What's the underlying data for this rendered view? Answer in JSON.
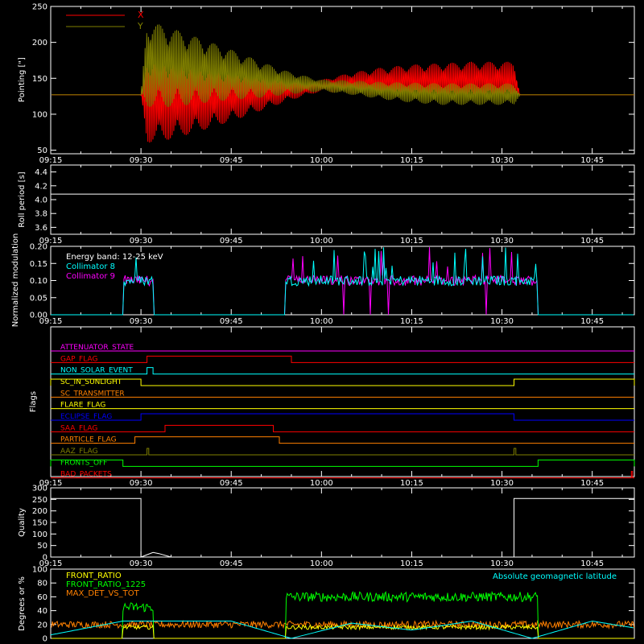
{
  "chart_data": [
    {
      "type": "line",
      "id": "pointing",
      "ylabel": "Pointing [\"]",
      "ylim": [
        45,
        250
      ],
      "yticks": [
        50,
        100,
        150,
        200,
        250
      ],
      "legend": [
        "X",
        "Y"
      ],
      "legend_position": "top-left",
      "colors": {
        "X": "#ff0000",
        "Y": "#808000"
      },
      "series": [
        {
          "name": "X",
          "x": [
            "09:15",
            "09:30",
            "09:31",
            "09:35",
            "09:40",
            "09:45",
            "09:50",
            "09:55",
            "10:00",
            "10:05",
            "10:10",
            "10:15",
            "10:20",
            "10:25",
            "10:30",
            "10:32",
            "10:33",
            "10:40",
            "10:50"
          ],
          "center": [
            127,
            127,
            120,
            120,
            122,
            125,
            130,
            135,
            140,
            143,
            145,
            147,
            147,
            148,
            148,
            148,
            127,
            127,
            127
          ],
          "amplitude": [
            0,
            0,
            60,
            55,
            45,
            35,
            25,
            15,
            8,
            15,
            20,
            22,
            24,
            25,
            25,
            25,
            0,
            0,
            0
          ]
        },
        {
          "name": "Y",
          "x": [
            "09:15",
            "09:30",
            "09:31",
            "09:35",
            "09:40",
            "09:45",
            "09:50",
            "09:55",
            "10:00",
            "10:05",
            "10:10",
            "10:15",
            "10:20",
            "10:25",
            "10:30",
            "10:32",
            "10:33",
            "10:40",
            "10:50"
          ],
          "center": [
            127,
            127,
            170,
            165,
            160,
            155,
            148,
            143,
            140,
            137,
            133,
            130,
            128,
            128,
            128,
            128,
            127,
            127,
            127
          ],
          "amplitude": [
            0,
            0,
            60,
            55,
            45,
            35,
            25,
            15,
            8,
            10,
            12,
            14,
            15,
            15,
            15,
            15,
            0,
            0,
            0
          ]
        }
      ]
    },
    {
      "type": "line",
      "id": "roll",
      "ylabel": "Roll period [s]",
      "ylim": [
        3.5,
        4.5
      ],
      "yticks": [
        3.6,
        3.8,
        4.0,
        4.2,
        4.4
      ],
      "series": [
        {
          "name": "",
          "value": 4.08
        }
      ]
    },
    {
      "type": "line",
      "id": "modulation",
      "ylabel": "Normalized modulation",
      "ylim": [
        0,
        0.2
      ],
      "yticks": [
        0.0,
        0.05,
        0.1,
        0.15,
        0.2
      ],
      "annotation": "Energy band: 12-25 keV",
      "legend": [
        "Collimator 8",
        "Collimator 9"
      ],
      "colors": {
        "Collimator 8": "#00ffff",
        "Collimator 9": "#ff00ff"
      },
      "active_intervals": [
        [
          "09:27",
          "09:32"
        ],
        [
          "09:54",
          "10:36"
        ]
      ],
      "baseline": 0.1
    },
    {
      "type": "line",
      "id": "flags",
      "ylabel": "Flags",
      "series": [
        {
          "name": "ATTENUATOR_STATE",
          "color": "#ff00ff",
          "on": []
        },
        {
          "name": "GAP_FLAG",
          "color": "#ff0000",
          "on": [
            [
              "09:31",
              "09:55"
            ]
          ]
        },
        {
          "name": "NON_SOLAR_EVENT",
          "color": "#00ffff",
          "on": [
            [
              "09:31",
              "09:32"
            ]
          ]
        },
        {
          "name": "SC_IN_SUNLIGHT",
          "color": "#ffff00",
          "on": [
            [
              "09:15",
              "09:30"
            ],
            [
              "10:32",
              "10:52"
            ]
          ]
        },
        {
          "name": "SC_TRANSMITTER",
          "color": "#ff8000",
          "on": []
        },
        {
          "name": "FLARE_FLAG",
          "color": "#ffff00",
          "on": []
        },
        {
          "name": "ECLIPSE_FLAG",
          "color": "#0000ff",
          "on": [
            [
              "09:30",
              "10:32"
            ]
          ]
        },
        {
          "name": "SAA_FLAG",
          "color": "#ff0000",
          "on": [
            [
              "09:34",
              "09:52"
            ]
          ]
        },
        {
          "name": "PARTICLE_FLAG",
          "color": "#ff8000",
          "on": [
            [
              "09:29",
              "09:53"
            ]
          ]
        },
        {
          "name": "AAZ_FLAG",
          "color": "#808000",
          "on": [
            [
              "09:31",
              "09:31.3"
            ],
            [
              "10:32",
              "10:32.3"
            ]
          ]
        },
        {
          "name": "FRONTS_OFF",
          "color": "#00ff00",
          "on": [
            [
              "09:15",
              "09:27"
            ],
            [
              "10:36",
              "10:52"
            ]
          ]
        },
        {
          "name": "BAD_PACKETS",
          "color": "#ff0000",
          "on": [
            [
              "10:51.5",
              "10:51.7"
            ]
          ]
        }
      ]
    },
    {
      "type": "line",
      "id": "quality",
      "ylabel": "Quality",
      "ylim": [
        0,
        300
      ],
      "yticks": [
        0,
        50,
        100,
        150,
        200,
        250,
        300
      ],
      "series": [
        {
          "name": "",
          "x": [
            "09:15",
            "09:30",
            "09:30",
            "09:31",
            "09:32",
            "09:33",
            "09:35",
            "10:32",
            "10:32",
            "10:52"
          ],
          "values": [
            254,
            254,
            0,
            10,
            20,
            15,
            0,
            0,
            254,
            254
          ]
        }
      ]
    },
    {
      "type": "line",
      "id": "ratios",
      "ylabel": "Degrees or %",
      "ylim": [
        0,
        100
      ],
      "yticks": [
        0,
        20,
        40,
        60,
        80,
        100
      ],
      "legend": [
        "FRONT_RATIO",
        "FRONT_RATIO_1225",
        "MAX_DET_VS_TOT"
      ],
      "annotation": "Absolute geomagnetic latitude",
      "colors": {
        "FRONT_RATIO": "#ffff00",
        "FRONT_RATIO_1225": "#00ff00",
        "MAX_DET_VS_TOT": "#ff8000",
        "Absolute geomagnetic latitude": "#00ffff"
      },
      "latitude": {
        "x": [
          "09:15",
          "09:27",
          "09:45",
          "09:55",
          "10:05",
          "10:15",
          "10:25",
          "10:35",
          "10:45",
          "10:52"
        ],
        "values": [
          5,
          25,
          25,
          0,
          22,
          12,
          25,
          0,
          25,
          15
        ]
      },
      "green_intervals": [
        [
          "09:27",
          "09:32",
          "45"
        ],
        [
          "09:54",
          "10:36",
          "60"
        ]
      ]
    }
  ],
  "x_axis": {
    "range": [
      "09:15",
      "10:52"
    ],
    "tick_labels": [
      "09:15",
      "09:30",
      "09:45",
      "10:00",
      "10:15",
      "10:30",
      "10:45"
    ]
  }
}
